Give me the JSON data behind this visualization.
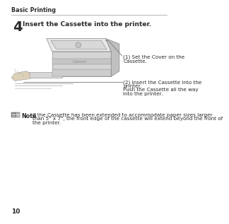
{
  "bg_color": "#ffffff",
  "header_text": "Basic Printing",
  "step_number": "4",
  "step_title": "Insert the Cassette into the printer.",
  "label1_line1": "(1) Set the Cover on the",
  "label1_line2": "Cassette.",
  "label2_line1": "(2) Insert the Cassette into the",
  "label2_line2": "printer.",
  "label2_line3": "Push the Cassette all the way",
  "label2_line4": "into the printer.",
  "note_text_line1": "If the Cassette has been extended to accommodate paper sizes larger",
  "note_text_line2": "than 5\" x 7\", the front edge of the cassette will extend beyond the front of",
  "note_text_line3": "the printer.",
  "page_number": "10",
  "text_color": "#2a2a2a",
  "header_color": "#2a2a2a",
  "printer_top_color": "#e0e0e0",
  "printer_side_color": "#c8c8c8",
  "printer_front_color": "#d4d4d4",
  "printer_edge_color": "#888888",
  "line_color": "#777777"
}
